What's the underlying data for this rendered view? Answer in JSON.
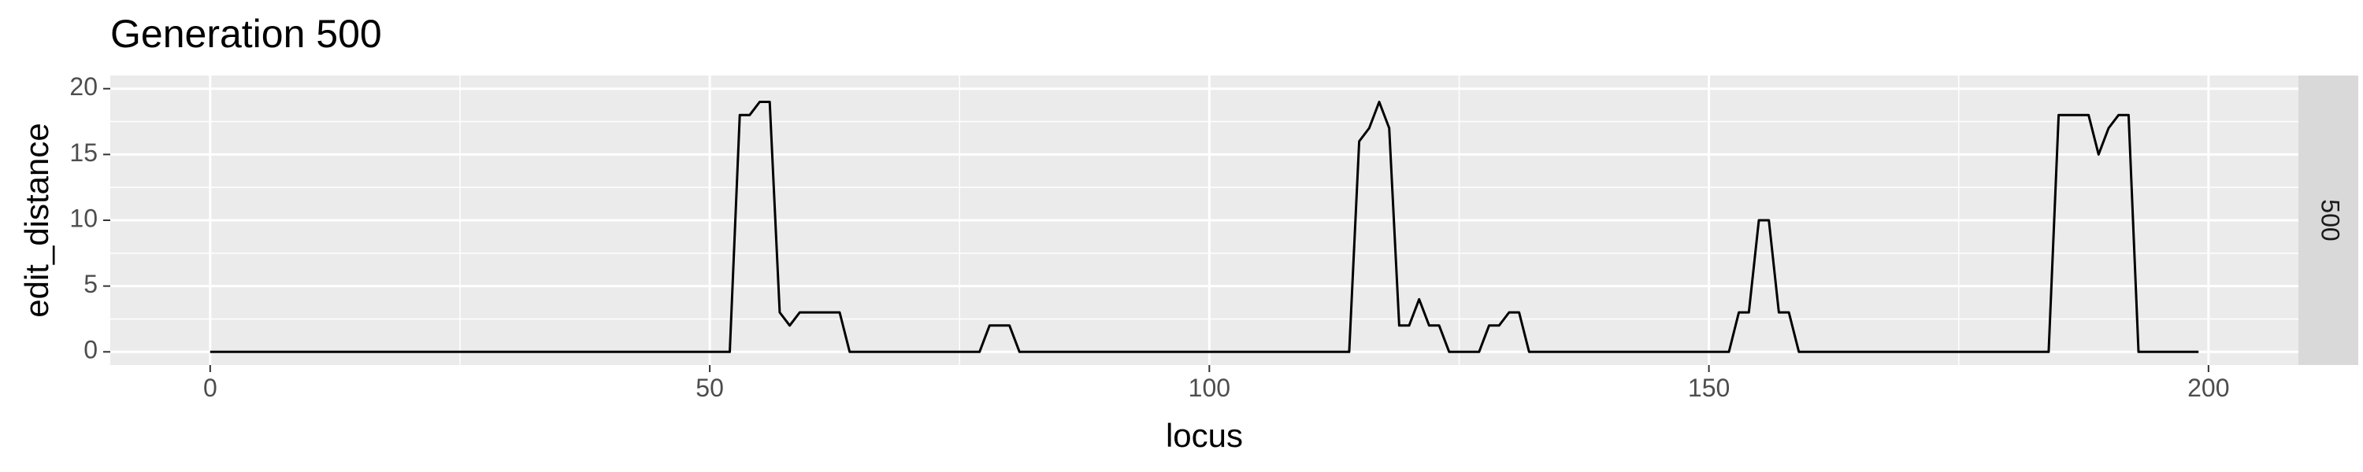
{
  "chart_data": {
    "type": "line",
    "title": "Generation 500",
    "xlabel": "locus",
    "ylabel": "edit_distance",
    "facet_label": "500",
    "xlim": [
      -10,
      209
    ],
    "ylim": [
      -1,
      21
    ],
    "x_ticks": [
      0,
      50,
      100,
      150,
      200
    ],
    "y_ticks": [
      0,
      5,
      10,
      15,
      20
    ],
    "grid": true,
    "series_color": "#000000",
    "panel_color": "#ebebeb",
    "strip_color": "#d9d9d9",
    "points": [
      [
        0,
        0
      ],
      [
        52,
        0
      ],
      [
        53,
        18
      ],
      [
        54,
        18
      ],
      [
        55,
        19
      ],
      [
        56,
        19
      ],
      [
        57,
        3
      ],
      [
        58,
        2
      ],
      [
        59,
        3
      ],
      [
        60,
        3
      ],
      [
        61,
        3
      ],
      [
        62,
        3
      ],
      [
        63,
        3
      ],
      [
        64,
        0
      ],
      [
        77,
        0
      ],
      [
        78,
        2
      ],
      [
        79,
        2
      ],
      [
        80,
        2
      ],
      [
        81,
        0
      ],
      [
        114,
        0
      ],
      [
        115,
        16
      ],
      [
        116,
        17
      ],
      [
        117,
        19
      ],
      [
        118,
        17
      ],
      [
        119,
        2
      ],
      [
        120,
        2
      ],
      [
        121,
        4
      ],
      [
        122,
        2
      ],
      [
        123,
        2
      ],
      [
        124,
        0
      ],
      [
        127,
        0
      ],
      [
        128,
        2
      ],
      [
        129,
        2
      ],
      [
        130,
        3
      ],
      [
        131,
        3
      ],
      [
        132,
        0
      ],
      [
        152,
        0
      ],
      [
        153,
        3
      ],
      [
        154,
        3
      ],
      [
        155,
        10
      ],
      [
        156,
        10
      ],
      [
        157,
        3
      ],
      [
        158,
        3
      ],
      [
        159,
        0
      ],
      [
        184,
        0
      ],
      [
        185,
        18
      ],
      [
        186,
        18
      ],
      [
        187,
        18
      ],
      [
        188,
        18
      ],
      [
        189,
        15
      ],
      [
        190,
        17
      ],
      [
        191,
        18
      ],
      [
        192,
        18
      ],
      [
        193,
        0
      ],
      [
        199,
        0
      ]
    ]
  }
}
